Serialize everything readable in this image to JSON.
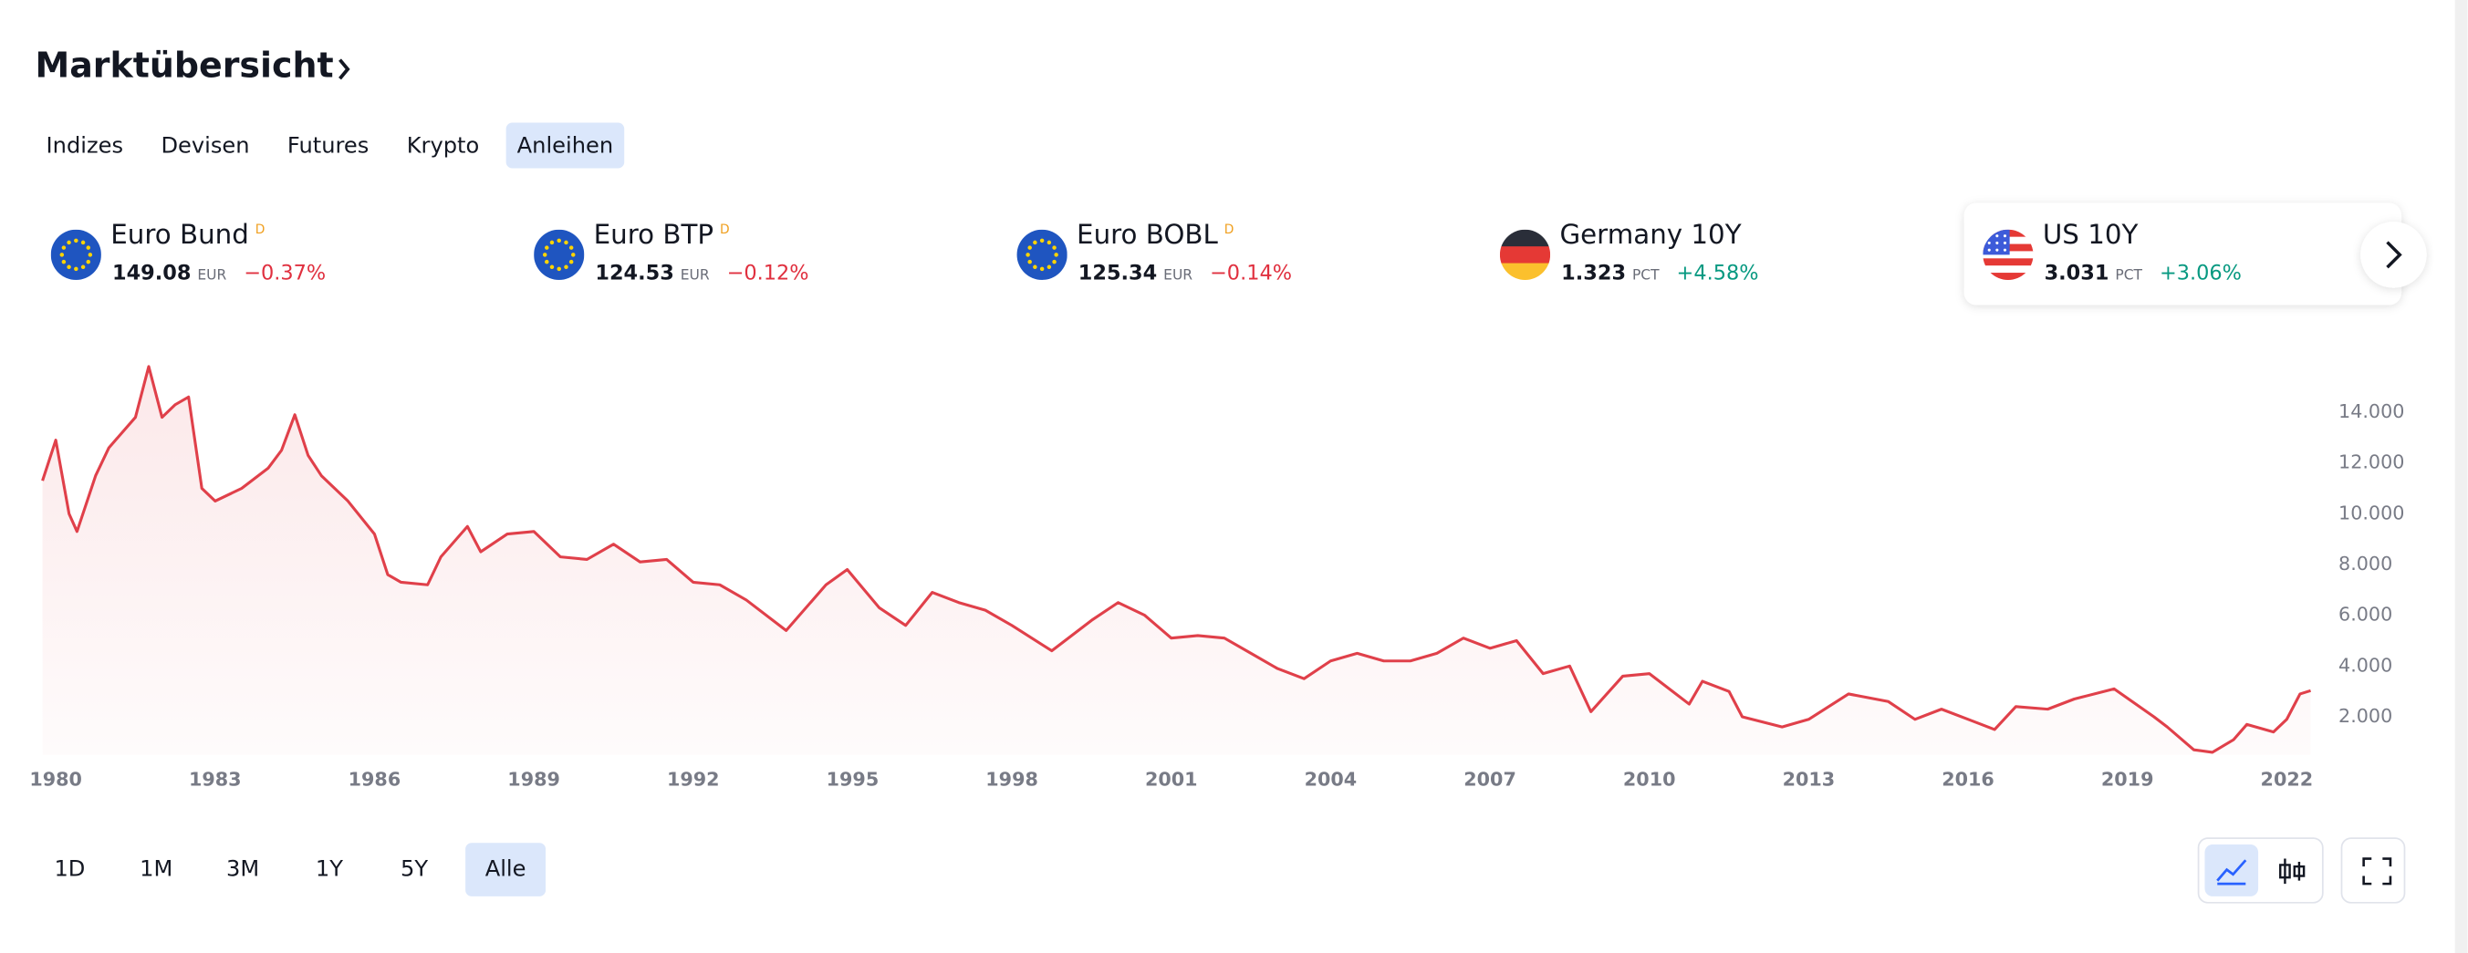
{
  "header": {
    "title": "Marktübersicht"
  },
  "tabs": {
    "items": [
      "Indizes",
      "Devisen",
      "Futures",
      "Krypto",
      "Anleihen"
    ],
    "active": 4
  },
  "tickers": [
    {
      "name": "Euro Bund",
      "flag": "eu",
      "badge": "D",
      "price": "149.08",
      "unit": "EUR",
      "change": "−0.37%",
      "direction": "down"
    },
    {
      "name": "Euro BTP",
      "flag": "eu",
      "badge": "D",
      "price": "124.53",
      "unit": "EUR",
      "change": "−0.12%",
      "direction": "down"
    },
    {
      "name": "Euro BOBL",
      "flag": "eu",
      "badge": "D",
      "price": "125.34",
      "unit": "EUR",
      "change": "−0.14%",
      "direction": "down"
    },
    {
      "name": "Germany 10Y",
      "flag": "de",
      "price": "1.323",
      "unit": "PCT",
      "change": "+4.58%",
      "direction": "up"
    },
    {
      "name": "US 10Y",
      "flag": "us",
      "price": "3.031",
      "unit": "PCT",
      "change": "+3.06%",
      "direction": "up",
      "selected": true
    }
  ],
  "chart_data": {
    "type": "line",
    "color": "#e0404a",
    "x": [
      1979.75,
      1980.0,
      1980.25,
      1980.4,
      1980.75,
      1981.0,
      1981.5,
      1981.75,
      1982.0,
      1982.25,
      1982.5,
      1982.75,
      1983.0,
      1983.5,
      1984.0,
      1984.25,
      1984.5,
      1984.75,
      1985.0,
      1985.5,
      1986.0,
      1986.25,
      1986.5,
      1987.0,
      1987.25,
      1987.75,
      1988.0,
      1988.5,
      1989.0,
      1989.5,
      1990.0,
      1990.5,
      1991.0,
      1991.5,
      1992.0,
      1992.5,
      1993.0,
      1993.75,
      1994.5,
      1994.9,
      1995.5,
      1996.0,
      1996.5,
      1997.0,
      1997.5,
      1998.0,
      1998.75,
      1999.5,
      2000.0,
      2000.5,
      2001.0,
      2001.5,
      2002.0,
      2002.5,
      2003.0,
      2003.5,
      2004.0,
      2004.5,
      2005.0,
      2005.5,
      2006.0,
      2006.5,
      2007.0,
      2007.5,
      2008.0,
      2008.5,
      2008.9,
      2009.5,
      2010.0,
      2010.75,
      2011.0,
      2011.5,
      2011.75,
      2012.5,
      2013.0,
      2013.75,
      2014.5,
      2015.0,
      2015.5,
      2016.5,
      2016.9,
      2017.5,
      2018.0,
      2018.75,
      2019.5,
      2019.75,
      2020.25,
      2020.6,
      2021.0,
      2021.25,
      2021.75,
      2022.0,
      2022.25,
      2022.45
    ],
    "values": [
      11.3,
      12.9,
      10.0,
      9.3,
      11.5,
      12.6,
      13.8,
      15.8,
      13.8,
      14.3,
      14.6,
      11.0,
      10.5,
      11.0,
      11.8,
      12.5,
      13.9,
      12.3,
      11.5,
      10.5,
      9.2,
      7.6,
      7.3,
      7.2,
      8.3,
      9.5,
      8.5,
      9.2,
      9.3,
      8.3,
      8.2,
      8.8,
      8.1,
      8.2,
      7.3,
      7.2,
      6.6,
      5.4,
      7.2,
      7.8,
      6.3,
      5.6,
      6.9,
      6.5,
      6.2,
      5.6,
      4.6,
      5.8,
      6.5,
      6.0,
      5.1,
      5.2,
      5.1,
      4.5,
      3.9,
      3.5,
      4.2,
      4.5,
      4.2,
      4.2,
      4.5,
      5.1,
      4.7,
      5.0,
      3.7,
      4.0,
      2.2,
      3.6,
      3.7,
      2.5,
      3.4,
      3.0,
      2.0,
      1.6,
      1.9,
      2.9,
      2.6,
      1.9,
      2.3,
      1.5,
      2.4,
      2.3,
      2.7,
      3.1,
      2.0,
      1.6,
      0.7,
      0.6,
      1.1,
      1.7,
      1.4,
      1.9,
      2.9,
      3.03
    ],
    "xlim": [
      1979.7,
      2022.5
    ],
    "ylim": [
      0.5,
      16.3
    ],
    "xticks": [
      1980,
      1983,
      1986,
      1989,
      1992,
      1995,
      1998,
      2001,
      2004,
      2007,
      2010,
      2013,
      2016,
      2019,
      2022
    ],
    "yticks": [
      {
        "value": 2,
        "label": "2.000"
      },
      {
        "value": 4,
        "label": "4.000"
      },
      {
        "value": 6,
        "label": "6.000"
      },
      {
        "value": 8,
        "label": "8.000"
      },
      {
        "value": 10,
        "label": "10.000"
      },
      {
        "value": 12,
        "label": "12.000"
      },
      {
        "value": 14,
        "label": "14.000"
      }
    ]
  },
  "ranges": {
    "items": [
      "1D",
      "1M",
      "3M",
      "1Y",
      "5Y",
      "Alle"
    ],
    "active": 5
  }
}
